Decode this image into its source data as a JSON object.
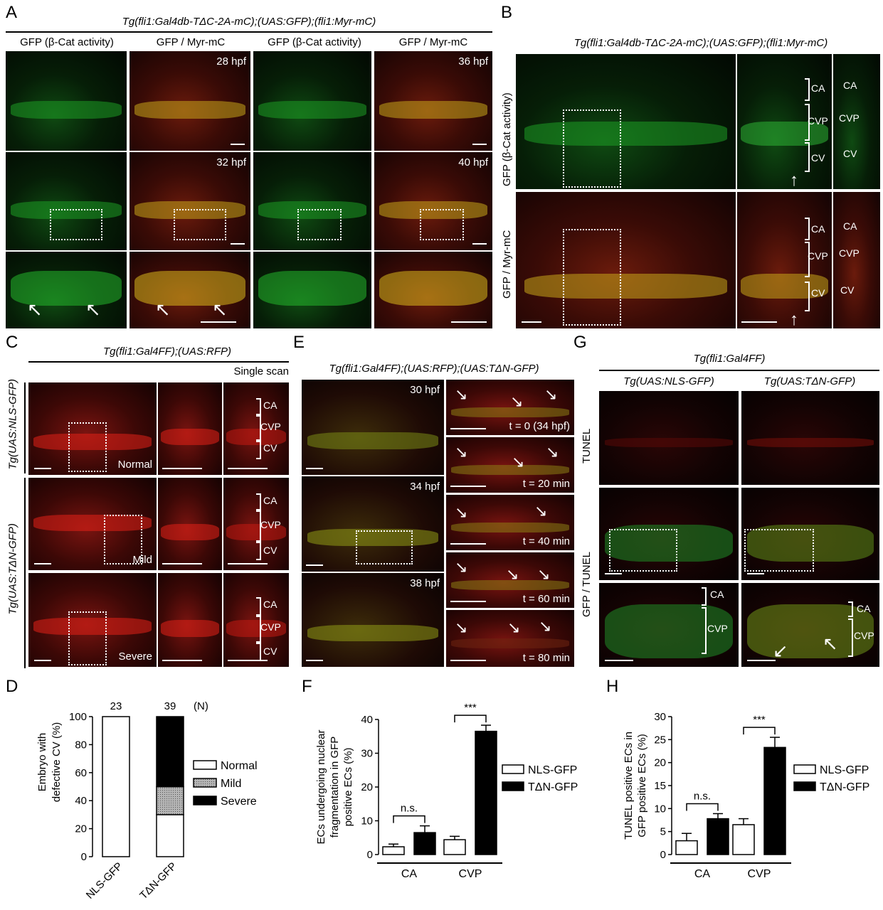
{
  "panel_labels": {
    "a": "A",
    "b": "B",
    "c": "C",
    "d": "D",
    "e": "E",
    "f": "F",
    "g": "G",
    "h": "H"
  },
  "panelA": {
    "genotype": "Tg(fli1:Gal4db-TΔC-2A-mC);(UAS:GFP);(fli1:Myr-mC)",
    "col_headers": [
      "GFP (β-Cat activity)",
      "GFP / Myr-mC",
      "GFP (β-Cat activity)",
      "GFP / Myr-mC"
    ],
    "times": [
      "28 hpf",
      "36 hpf",
      "32 hpf",
      "40 hpf"
    ]
  },
  "panelB": {
    "genotype": "Tg(fli1:Gal4db-TΔC-2A-mC);(UAS:GFP);(fli1:Myr-mC)",
    "row_labels": [
      "GFP (β-Cat activity)",
      "GFP / Myr-mC"
    ],
    "vessels": [
      "CA",
      "CVP",
      "CV"
    ]
  },
  "panelC": {
    "genotype": "Tg(fli1:Gal4FF);(UAS:RFP)",
    "scan_label": "Single scan",
    "row_group_labels": [
      "Tg(UAS:NLS-GFP)",
      "Tg(UAS:TΔN-GFP)"
    ],
    "phenotypes": [
      "Normal",
      "Mild",
      "Severe"
    ],
    "vessels": [
      "CA",
      "CVP",
      "CV"
    ]
  },
  "panelE": {
    "genotype": "Tg(fli1:Gal4FF);(UAS:RFP);(UAS:TΔN-GFP)",
    "times": [
      "30 hpf",
      "34 hpf",
      "38 hpf"
    ],
    "timelapse": [
      "t = 0 (34 hpf)",
      "t = 20 min",
      "t = 40 min",
      "t = 60 min",
      "t = 80 min"
    ]
  },
  "panelG": {
    "genotype": "Tg(fli1:Gal4FF)",
    "col_headers": [
      "Tg(UAS:NLS-GFP)",
      "Tg(UAS:TΔN-GFP)"
    ],
    "row_labels": [
      "TUNEL",
      "GFP / TUNEL"
    ],
    "vessels": [
      "CA",
      "CVP"
    ]
  },
  "chart_data": [
    {
      "panel": "D",
      "type": "bar",
      "stacked": true,
      "categories": [
        "NLS-GFP",
        "TΔN-GFP"
      ],
      "n_values": [
        "23",
        "39"
      ],
      "n_label": "(N)",
      "series": [
        {
          "name": "Normal",
          "values": [
            100,
            30
          ],
          "color": "#ffffff"
        },
        {
          "name": "Mild",
          "values": [
            0,
            20
          ],
          "color": "#a0a0a0"
        },
        {
          "name": "Severe",
          "values": [
            0,
            50
          ],
          "color": "#000000"
        }
      ],
      "ylabel": "Embryo with defective CV (%)",
      "ylim": [
        0,
        100
      ],
      "yticks": [
        "0",
        "20",
        "40",
        "60",
        "80",
        "100"
      ],
      "legend": "right"
    },
    {
      "panel": "F",
      "type": "bar",
      "groups": [
        "CA",
        "CVP"
      ],
      "series": [
        {
          "name": "NLS-GFP",
          "values": [
            2.3,
            4.4
          ],
          "errors": [
            0.8,
            1.0
          ],
          "color": "#ffffff"
        },
        {
          "name": "TΔN-GFP",
          "values": [
            6.5,
            36.5
          ],
          "errors": [
            2.0,
            1.8
          ],
          "color": "#000000"
        }
      ],
      "ylabel": "ECs undergoing nuclear fragmentation in GFP positive ECs (%)",
      "ylim": [
        0,
        40
      ],
      "yticks": [
        "0",
        "10",
        "20",
        "30",
        "40"
      ],
      "significance": [
        "n.s.",
        "***"
      ],
      "legend": "right"
    },
    {
      "panel": "H",
      "type": "bar",
      "groups": [
        "CA",
        "CVP"
      ],
      "series": [
        {
          "name": "NLS-GFP",
          "values": [
            3.0,
            6.5
          ],
          "errors": [
            1.6,
            1.3
          ],
          "color": "#ffffff"
        },
        {
          "name": "TΔN-GFP",
          "values": [
            7.8,
            23.3
          ],
          "errors": [
            1.1,
            2.2
          ],
          "color": "#000000"
        }
      ],
      "ylabel": "TUNEL positive ECs in GFP positive ECs (%)",
      "ylim": [
        0,
        30
      ],
      "yticks": [
        "0",
        "5",
        "10",
        "15",
        "20",
        "25",
        "30"
      ],
      "significance": [
        "n.s.",
        "***"
      ],
      "legend": "right"
    }
  ]
}
